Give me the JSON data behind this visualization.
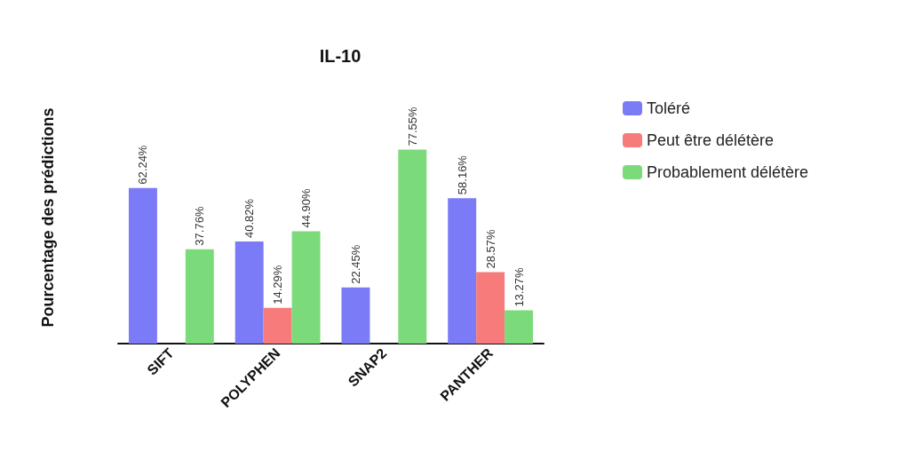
{
  "chart_data": {
    "type": "bar",
    "title": "IL-10",
    "ylabel": "Pourcentage des prédictions",
    "categories": [
      "SIFT",
      "POLYPHEN",
      "SNAP2",
      "PANTHER"
    ],
    "series": [
      {
        "name": "Toléré",
        "color": "#7b7bf7",
        "values": [
          62.24,
          40.82,
          22.45,
          58.16
        ],
        "value_labels": [
          "62.24%",
          "40.82%",
          "22.45%",
          "58.16%"
        ]
      },
      {
        "name": "Peut être délétère",
        "color": "#f77b7b",
        "values": [
          null,
          14.29,
          null,
          28.57
        ],
        "value_labels": [
          null,
          "14.29%",
          null,
          "28.57%"
        ]
      },
      {
        "name": "Probablement délétère",
        "color": "#7bdb7b",
        "values": [
          37.76,
          44.9,
          77.55,
          13.27
        ],
        "value_labels": [
          "37.76%",
          "44.90%",
          "77.55%",
          "13.27%"
        ]
      }
    ],
    "legend": "right",
    "grid": false
  }
}
